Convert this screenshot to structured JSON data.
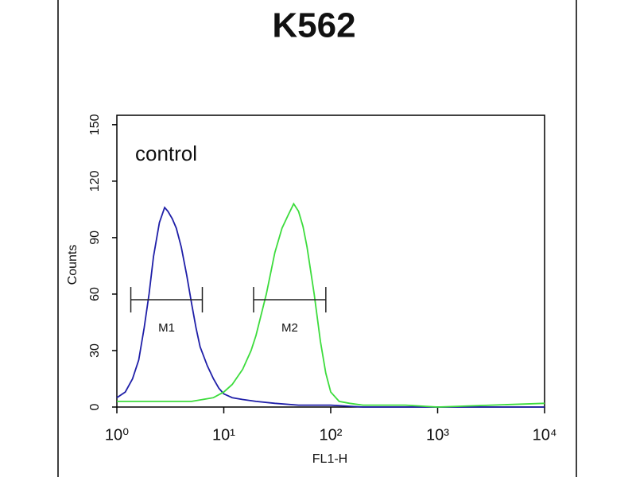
{
  "chart_data": {
    "type": "line",
    "title": "K562",
    "annotation": "control",
    "xlabel": "FL1-H",
    "ylabel": "Counts",
    "xscale": "log",
    "xlim": [
      1,
      10000
    ],
    "xticks": [
      {
        "value": 1,
        "label": "10⁰"
      },
      {
        "value": 10,
        "label": "10¹"
      },
      {
        "value": 100,
        "label": "10²"
      },
      {
        "value": 1000,
        "label": "10³"
      },
      {
        "value": 10000,
        "label": "10⁴"
      }
    ],
    "ylim": [
      0,
      155
    ],
    "yticks": [
      0,
      30,
      60,
      90,
      120,
      150
    ],
    "series": [
      {
        "color": "#1f1fa8",
        "x": [
          1,
          1.2,
          1.4,
          1.6,
          1.8,
          2,
          2.2,
          2.5,
          2.8,
          3,
          3.3,
          3.6,
          4,
          4.5,
          5,
          5.5,
          6,
          7,
          8,
          9,
          10,
          12,
          15,
          20,
          30,
          50,
          100,
          200,
          1000,
          10000
        ],
        "values": [
          5,
          8,
          15,
          25,
          42,
          60,
          80,
          98,
          106,
          104,
          100,
          95,
          85,
          70,
          55,
          42,
          32,
          22,
          15,
          10,
          7,
          5,
          4,
          3,
          2,
          1,
          1,
          0,
          0,
          0
        ]
      },
      {
        "color": "#3ddc3d",
        "x": [
          1,
          2,
          5,
          8,
          10,
          12,
          15,
          18,
          20,
          25,
          30,
          35,
          40,
          45,
          50,
          55,
          60,
          70,
          80,
          90,
          100,
          120,
          150,
          200,
          500,
          1000,
          10000
        ],
        "values": [
          3,
          3,
          3,
          5,
          8,
          12,
          20,
          30,
          38,
          60,
          82,
          95,
          102,
          108,
          104,
          96,
          85,
          60,
          35,
          18,
          8,
          3,
          2,
          1,
          1,
          0,
          2
        ]
      }
    ],
    "markers": [
      {
        "label": "M1",
        "range": [
          1.35,
          6.3
        ],
        "level": 57
      },
      {
        "label": "M2",
        "range": [
          19,
          90
        ],
        "level": 57
      }
    ]
  }
}
